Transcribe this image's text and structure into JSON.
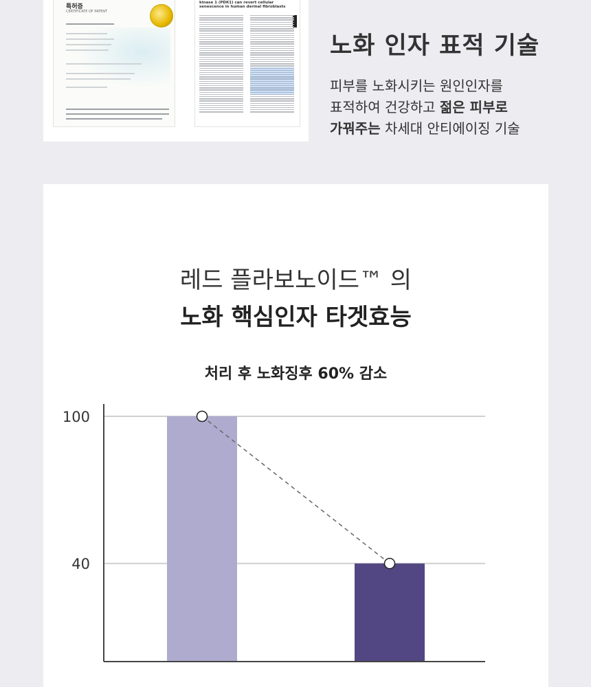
{
  "top": {
    "certificate": {
      "title": "특허증",
      "subtitle": "CERTIFICATE OF PATENT"
    },
    "paper": {
      "title": "kinase 1 (PDK1) can revert cellular senescence in human dermal fibroblasts"
    },
    "title": "노화 인자 표적 기술",
    "desc_line1": "피부를 노화시키는 원인인자를",
    "desc_line2_pre": "표적하여 건강하고 ",
    "desc_line2_bold": "젊은 피부로",
    "desc_line3_bold": "가꿔주는",
    "desc_line3_post": " 차세대 안티에이징 기술"
  },
  "card": {
    "heading_line1": "레드 플라보노이드™ 의",
    "heading_line2": "노화 핵심인자 타겟효능",
    "caption": "처리 후 노화징후 60% 감소"
  },
  "colors": {
    "page_bg": "#ececf1",
    "bar_before": "#aeabcf",
    "bar_after": "#524782",
    "grid": "#cfcfcf",
    "trend_line": "#666666"
  },
  "chart_data": {
    "type": "bar",
    "categories": [
      "",
      ""
    ],
    "values": [
      100,
      40
    ],
    "ytick_labels": [
      "100",
      "40"
    ],
    "yticks": [
      100,
      40
    ],
    "ylim": [
      0,
      100
    ],
    "trend_line": "dashed line connecting bar tops with circle markers",
    "grid": true,
    "legend": "none"
  }
}
